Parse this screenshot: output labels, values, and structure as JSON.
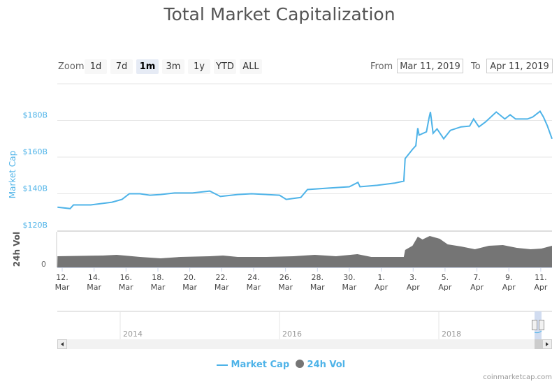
{
  "title": "Total Market Capitalization",
  "range_selector": {
    "zoom_label": "Zoom",
    "buttons": [
      "1d",
      "7d",
      "1m",
      "3m",
      "1y",
      "YTD",
      "ALL"
    ],
    "selected": "1m",
    "from_label": "From",
    "from_value": "Mar 11, 2019",
    "to_label": "To",
    "to_value": "Apr 11, 2019"
  },
  "colors": {
    "market_cap": "#4eb3e8",
    "volume": "#757575",
    "accent_selected": "#e6ebf5"
  },
  "chart_data": [
    {
      "type": "line",
      "ylabel": "Market Cap",
      "yticks": [
        "$120B",
        "$140B",
        "$160B",
        "$180B"
      ],
      "ylim": [
        120,
        200
      ],
      "unit": "$B",
      "grid": true,
      "xticks": [
        "12. Mar",
        "14. Mar",
        "16. Mar",
        "18. Mar",
        "20. Mar",
        "22. Mar",
        "24. Mar",
        "26. Mar",
        "28. Mar",
        "30. Mar",
        "1. Apr",
        "3. Apr",
        "5. Apr",
        "7. Apr",
        "9. Apr",
        "11. Apr"
      ],
      "series": [
        {
          "name": "Market Cap",
          "x": [
            "2019-03-11 17:00",
            "2019-03-12 12:00",
            "2019-03-12 17:00",
            "2019-03-13 19:00",
            "2019-03-15 03:00",
            "2019-03-15 18:00",
            "2019-03-16 05:00",
            "2019-03-16 21:00",
            "2019-03-17 12:00",
            "2019-03-18 04:00",
            "2019-03-19 01:00",
            "2019-03-20 04:00",
            "2019-03-21 06:00",
            "2019-03-21 22:00",
            "2019-03-23 00:00",
            "2019-03-23 21:00",
            "2019-03-25 15:00",
            "2019-03-26 01:00",
            "2019-03-26 23:00",
            "2019-03-27 09:00",
            "2019-03-28 17:00",
            "2019-03-30 00:00",
            "2019-03-30 13:00",
            "2019-03-30 16:00",
            "2019-03-31 18:00",
            "2019-04-01 20:00",
            "2019-04-02 10:00",
            "2019-04-02 12:00",
            "2019-04-02 23:00",
            "2019-04-03 04:00",
            "2019-04-03 07:00",
            "2019-04-03 09:00",
            "2019-04-03 20:00",
            "2019-04-04 00:00",
            "2019-04-04 02:00",
            "2019-04-04 06:00",
            "2019-04-04 12:00",
            "2019-04-04 22:00",
            "2019-04-05 08:00",
            "2019-04-06 00:00",
            "2019-04-06 13:00",
            "2019-04-06 19:00",
            "2019-04-07 03:00",
            "2019-04-07 13:00",
            "2019-04-08 05:00",
            "2019-04-08 18:00",
            "2019-04-09 02:00",
            "2019-04-09 10:00",
            "2019-04-10 04:00",
            "2019-04-10 12:00",
            "2019-04-10 23:00",
            "2019-04-11 04:00",
            "2019-04-11 10:00",
            "2019-04-11 17:00"
          ],
          "y": [
            132.7,
            131.9,
            133.9,
            133.9,
            135.4,
            136.9,
            140.0,
            140.0,
            139.2,
            139.6,
            140.4,
            140.4,
            141.5,
            138.5,
            139.6,
            140.0,
            139.2,
            136.9,
            138.0,
            142.3,
            143.1,
            143.8,
            146.2,
            143.8,
            144.6,
            145.8,
            146.9,
            159.2,
            164.2,
            166.2,
            175.8,
            172.0,
            173.8,
            181.5,
            184.6,
            173.0,
            175.4,
            170.0,
            174.6,
            176.5,
            176.9,
            180.8,
            176.5,
            179.2,
            184.6,
            180.8,
            183.1,
            180.8,
            180.8,
            181.9,
            185.0,
            181.9,
            177.0,
            170.0
          ]
        }
      ]
    },
    {
      "type": "area",
      "ylabel": "24h Vol",
      "yticks": [
        "0"
      ],
      "unit": "$B",
      "ylim": [
        0,
        100
      ],
      "series": [
        {
          "name": "24h Vol",
          "x": [
            "2019-03-11 17:00",
            "2019-03-14 13:00",
            "2019-03-15 10:00",
            "2019-03-16 21:00",
            "2019-03-18 04:00",
            "2019-03-19 10:00",
            "2019-03-21 06:00",
            "2019-03-22 02:00",
            "2019-03-23 00:00",
            "2019-03-24 18:00",
            "2019-03-26 12:00",
            "2019-03-27 20:00",
            "2019-03-29 04:00",
            "2019-03-30 12:00",
            "2019-03-31 09:00",
            "2019-04-02 10:00",
            "2019-04-02 12:00",
            "2019-04-02 23:00",
            "2019-04-03 07:00",
            "2019-04-03 14:00",
            "2019-04-04 01:00",
            "2019-04-04 16:00",
            "2019-04-05 04:00",
            "2019-04-06 00:00",
            "2019-04-06 21:00",
            "2019-04-07 18:00",
            "2019-04-08 15:00",
            "2019-04-09 12:00",
            "2019-04-10 09:00",
            "2019-04-11 01:00",
            "2019-04-11 17:00"
          ],
          "y": [
            32,
            34,
            36,
            30,
            26,
            30,
            32,
            34,
            30,
            30,
            32,
            36,
            32,
            38,
            30,
            30,
            50,
            62,
            88,
            80,
            90,
            82,
            66,
            60,
            52,
            62,
            64,
            56,
            52,
            54,
            62
          ]
        }
      ]
    }
  ],
  "navigator": {
    "years": [
      "2014",
      "2016",
      "2018"
    ]
  },
  "legend": {
    "items": [
      "Market Cap",
      "24h Vol"
    ]
  },
  "credit": "coinmarketcap.com"
}
